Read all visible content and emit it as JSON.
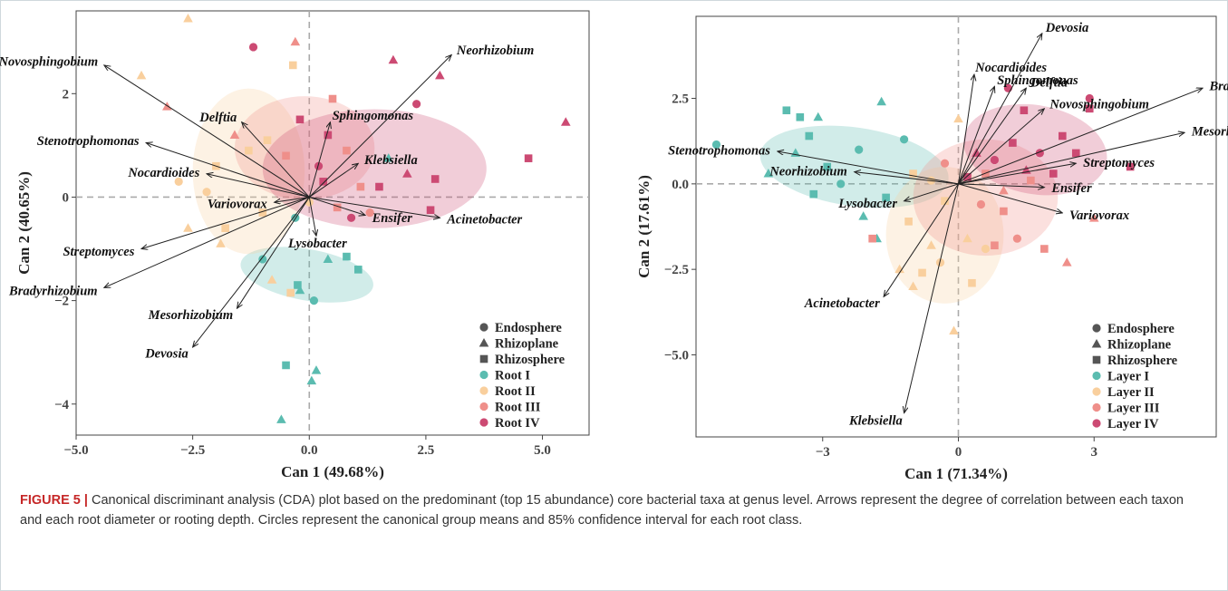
{
  "figure": {
    "caption_lead": "FIGURE 5 |",
    "caption_text": " Canonical discriminant analysis (CDA) plot based on the predominant (top 15 abundance) core bacterial taxa at genus level. Arrows represent the degree of correlation between each taxon and each root diameter or rooting depth. Circles represent the canonical group means and 85% confidence interval for each root class."
  },
  "colors": {
    "class1": "#5bbcb0",
    "class2": "#f9cf9d",
    "class3": "#ef8f8a",
    "class4": "#cc4a73"
  },
  "chart_data": [
    {
      "type": "scatter",
      "xlabel": "Can 1 (49.68%)",
      "ylabel": "Can 2 (40.65%)",
      "xlim": [
        -5.0,
        6.0
      ],
      "ylim": [
        -4.6,
        3.6
      ],
      "xticks": [
        -5.0,
        -2.5,
        0.0,
        2.5,
        5.0
      ],
      "xticklabels": [
        "−5.0",
        "−2.5",
        "0.0",
        "2.5",
        "5.0"
      ],
      "yticks": [
        -4,
        -2,
        0,
        2
      ],
      "yticklabels": [
        "−4",
        "−2",
        "0",
        "2"
      ],
      "legend": {
        "position": "bottom-right",
        "shapes": [
          "Endosphere",
          "Rhizoplane",
          "Rhizosphere"
        ],
        "groups": [
          "Root I",
          "Root II",
          "Root III",
          "Root IV"
        ]
      },
      "ellipses": [
        {
          "group": "Root I",
          "cx": -0.05,
          "cy": -1.5,
          "rx": 0.55,
          "ry": 1.3,
          "angle": 80
        },
        {
          "group": "Root II",
          "cx": -1.3,
          "cy": 0.5,
          "rx": 1.2,
          "ry": 1.6,
          "angle": 0
        },
        {
          "group": "Root III",
          "cx": -0.1,
          "cy": 0.95,
          "rx": 1.5,
          "ry": 1.0,
          "angle": 0
        },
        {
          "group": "Root IV",
          "cx": 1.4,
          "cy": 0.55,
          "rx": 2.4,
          "ry": 1.15,
          "angle": 0
        }
      ],
      "arrows": [
        {
          "label": "Novosphingobium",
          "x": -4.4,
          "y": 2.55
        },
        {
          "label": "Neorhizobium",
          "x": 3.05,
          "y": 2.75
        },
        {
          "label": "Delftia",
          "x": -1.45,
          "y": 1.45
        },
        {
          "label": "Sphingomonas",
          "x": 0.45,
          "y": 1.45
        },
        {
          "label": "Stenotrophomonas",
          "x": -3.5,
          "y": 1.05
        },
        {
          "label": "Klebsiella",
          "x": 1.05,
          "y": 0.65
        },
        {
          "label": "Nocardioides",
          "x": -2.2,
          "y": 0.45
        },
        {
          "label": "Variovorax",
          "x": -0.75,
          "y": -0.1
        },
        {
          "label": "Acinetobacter",
          "x": 2.8,
          "y": -0.4
        },
        {
          "label": "Ensifer",
          "x": 1.2,
          "y": -0.35
        },
        {
          "label": "Lysobacter",
          "x": 0.15,
          "y": -0.75
        },
        {
          "label": "Streptomyces",
          "x": -3.6,
          "y": -1.0
        },
        {
          "label": "Bradyrhizobium",
          "x": -4.4,
          "y": -1.75
        },
        {
          "label": "Mesorhizobium",
          "x": -1.55,
          "y": -2.15
        },
        {
          "label": "Devosia",
          "x": -2.5,
          "y": -2.9
        }
      ],
      "points": [
        {
          "x": -2.6,
          "y": 3.45,
          "shape": "Rhizoplane",
          "group": "Root II"
        },
        {
          "x": -3.6,
          "y": 2.35,
          "shape": "Rhizoplane",
          "group": "Root II"
        },
        {
          "x": -3.05,
          "y": 1.75,
          "shape": "Rhizoplane",
          "group": "Root III"
        },
        {
          "x": -1.2,
          "y": 2.9,
          "shape": "Endosphere",
          "group": "Root IV"
        },
        {
          "x": -0.3,
          "y": 3.0,
          "shape": "Rhizoplane",
          "group": "Root III"
        },
        {
          "x": -0.35,
          "y": 2.55,
          "shape": "Rhizosphere",
          "group": "Root II"
        },
        {
          "x": 1.8,
          "y": 2.65,
          "shape": "Rhizoplane",
          "group": "Root IV"
        },
        {
          "x": 2.8,
          "y": 2.35,
          "shape": "Rhizoplane",
          "group": "Root IV"
        },
        {
          "x": 5.5,
          "y": 1.45,
          "shape": "Rhizoplane",
          "group": "Root IV"
        },
        {
          "x": 4.7,
          "y": 0.75,
          "shape": "Rhizosphere",
          "group": "Root IV"
        },
        {
          "x": 2.3,
          "y": 1.8,
          "shape": "Endosphere",
          "group": "Root IV"
        },
        {
          "x": 2.7,
          "y": 0.35,
          "shape": "Rhizosphere",
          "group": "Root IV"
        },
        {
          "x": 2.6,
          "y": -0.25,
          "shape": "Rhizosphere",
          "group": "Root IV"
        },
        {
          "x": 2.1,
          "y": 0.45,
          "shape": "Rhizoplane",
          "group": "Root IV"
        },
        {
          "x": 1.7,
          "y": 0.75,
          "shape": "Rhizoplane",
          "group": "Root I"
        },
        {
          "x": 1.5,
          "y": 0.2,
          "shape": "Rhizosphere",
          "group": "Root IV"
        },
        {
          "x": 0.8,
          "y": 0.9,
          "shape": "Rhizosphere",
          "group": "Root III"
        },
        {
          "x": 0.4,
          "y": 1.2,
          "shape": "Rhizosphere",
          "group": "Root IV"
        },
        {
          "x": 0.2,
          "y": 0.6,
          "shape": "Endosphere",
          "group": "Root IV"
        },
        {
          "x": -0.5,
          "y": 0.8,
          "shape": "Rhizosphere",
          "group": "Root III"
        },
        {
          "x": -0.9,
          "y": 1.1,
          "shape": "Rhizosphere",
          "group": "Root II"
        },
        {
          "x": -1.3,
          "y": 0.9,
          "shape": "Rhizosphere",
          "group": "Root II"
        },
        {
          "x": -1.6,
          "y": 1.2,
          "shape": "Rhizoplane",
          "group": "Root III"
        },
        {
          "x": -2.0,
          "y": 0.6,
          "shape": "Rhizosphere",
          "group": "Root II"
        },
        {
          "x": -2.2,
          "y": 0.1,
          "shape": "Endosphere",
          "group": "Root II"
        },
        {
          "x": -2.6,
          "y": -0.6,
          "shape": "Rhizoplane",
          "group": "Root II"
        },
        {
          "x": -1.8,
          "y": -0.6,
          "shape": "Rhizosphere",
          "group": "Root II"
        },
        {
          "x": -1.0,
          "y": -0.3,
          "shape": "Rhizosphere",
          "group": "Root II"
        },
        {
          "x": -1.0,
          "y": -1.2,
          "shape": "Endosphere",
          "group": "Root I"
        },
        {
          "x": -0.8,
          "y": -1.6,
          "shape": "Rhizoplane",
          "group": "Root II"
        },
        {
          "x": -0.3,
          "y": -0.4,
          "shape": "Endosphere",
          "group": "Root I"
        },
        {
          "x": 0.0,
          "y": -0.1,
          "shape": "Endosphere",
          "group": "Root II"
        },
        {
          "x": 0.3,
          "y": 0.3,
          "shape": "Rhizosphere",
          "group": "Root IV"
        },
        {
          "x": 0.6,
          "y": -0.2,
          "shape": "Rhizosphere",
          "group": "Root III"
        },
        {
          "x": 0.9,
          "y": -0.4,
          "shape": "Endosphere",
          "group": "Root IV"
        },
        {
          "x": 1.1,
          "y": 0.2,
          "shape": "Rhizosphere",
          "group": "Root III"
        },
        {
          "x": 0.4,
          "y": -1.2,
          "shape": "Rhizoplane",
          "group": "Root I"
        },
        {
          "x": 1.05,
          "y": -1.4,
          "shape": "Rhizosphere",
          "group": "Root I"
        },
        {
          "x": 0.8,
          "y": -1.15,
          "shape": "Rhizosphere",
          "group": "Root I"
        },
        {
          "x": -0.25,
          "y": -1.7,
          "shape": "Rhizosphere",
          "group": "Root I"
        },
        {
          "x": -0.2,
          "y": -1.8,
          "shape": "Rhizoplane",
          "group": "Root I"
        },
        {
          "x": -0.4,
          "y": -1.85,
          "shape": "Rhizosphere",
          "group": "Root II"
        },
        {
          "x": 0.1,
          "y": -2.0,
          "shape": "Endosphere",
          "group": "Root I"
        },
        {
          "x": -0.5,
          "y": -3.25,
          "shape": "Rhizosphere",
          "group": "Root I"
        },
        {
          "x": 0.15,
          "y": -3.35,
          "shape": "Rhizoplane",
          "group": "Root I"
        },
        {
          "x": 0.05,
          "y": -3.55,
          "shape": "Rhizoplane",
          "group": "Root I"
        },
        {
          "x": -0.6,
          "y": -4.3,
          "shape": "Rhizoplane",
          "group": "Root I"
        },
        {
          "x": 1.3,
          "y": -0.3,
          "shape": "Endosphere",
          "group": "Root III"
        },
        {
          "x": 0.5,
          "y": 1.9,
          "shape": "Rhizosphere",
          "group": "Root III"
        },
        {
          "x": -0.2,
          "y": 1.5,
          "shape": "Rhizosphere",
          "group": "Root IV"
        },
        {
          "x": -1.9,
          "y": -0.9,
          "shape": "Rhizoplane",
          "group": "Root II"
        },
        {
          "x": -2.8,
          "y": 0.3,
          "shape": "Endosphere",
          "group": "Root II"
        }
      ]
    },
    {
      "type": "scatter",
      "xlabel": "Can 1 (71.34%)",
      "ylabel": "Can 2 (17.61%)",
      "xlim": [
        -5.8,
        5.7
      ],
      "ylim": [
        -7.4,
        4.9
      ],
      "xticks": [
        -3,
        0,
        3
      ],
      "xticklabels": [
        "−3",
        "0",
        "3"
      ],
      "yticks": [
        -5.0,
        -2.5,
        0.0,
        2.5
      ],
      "yticklabels": [
        "−5.0",
        "−2.5",
        "0.0",
        "2.5"
      ],
      "legend": {
        "position": "bottom-right",
        "shapes": [
          "Endosphere",
          "Rhizoplane",
          "Rhizosphere"
        ],
        "groups": [
          "Layer I",
          "Layer II",
          "Layer III",
          "Layer IV"
        ]
      },
      "ellipses": [
        {
          "group": "Layer I",
          "cx": -2.3,
          "cy": 0.5,
          "rx": 2.1,
          "ry": 1.15,
          "angle": -8
        },
        {
          "group": "Layer II",
          "cx": -0.3,
          "cy": -1.5,
          "rx": 1.3,
          "ry": 2.0,
          "angle": 0
        },
        {
          "group": "Layer III",
          "cx": 0.6,
          "cy": -0.4,
          "rx": 1.6,
          "ry": 1.7,
          "angle": 0
        },
        {
          "group": "Layer IV",
          "cx": 1.7,
          "cy": 1.0,
          "rx": 1.6,
          "ry": 1.3,
          "angle": -10
        }
      ],
      "arrows": [
        {
          "label": "Devosia",
          "x": 1.85,
          "y": 4.4
        },
        {
          "label": "Nocardioides",
          "x": 0.35,
          "y": 3.2
        },
        {
          "label": "Sphingomonas",
          "x": 0.8,
          "y": 2.85
        },
        {
          "label": "Delftia",
          "x": 1.5,
          "y": 2.8
        },
        {
          "label": "Bradyrhizobium",
          "x": 5.4,
          "y": 2.8
        },
        {
          "label": "Novosphingobium",
          "x": 1.9,
          "y": 2.2
        },
        {
          "label": "Mesorhizol",
          "x": 5.0,
          "y": 1.5
        },
        {
          "label": "Stenotrophomonas",
          "x": -4.0,
          "y": 0.95
        },
        {
          "label": "Neorhizobium",
          "x": -2.3,
          "y": 0.35
        },
        {
          "label": "Streptomyces",
          "x": 2.6,
          "y": 0.6
        },
        {
          "label": "Ensifer",
          "x": 1.9,
          "y": -0.1
        },
        {
          "label": "Lysobacter",
          "x": -1.2,
          "y": -0.5
        },
        {
          "label": "Variovorax",
          "x": 2.3,
          "y": -0.85
        },
        {
          "label": "Acinetobacter",
          "x": -1.65,
          "y": -3.3
        },
        {
          "label": "Klebsiella",
          "x": -1.2,
          "y": -6.7
        }
      ],
      "points": [
        {
          "x": -5.35,
          "y": 1.15,
          "shape": "Endosphere",
          "group": "Layer I"
        },
        {
          "x": -4.2,
          "y": 0.3,
          "shape": "Rhizoplane",
          "group": "Layer I"
        },
        {
          "x": -3.8,
          "y": 2.15,
          "shape": "Rhizosphere",
          "group": "Layer I"
        },
        {
          "x": -3.5,
          "y": 1.95,
          "shape": "Rhizosphere",
          "group": "Layer I"
        },
        {
          "x": -3.1,
          "y": 1.95,
          "shape": "Rhizoplane",
          "group": "Layer I"
        },
        {
          "x": -3.3,
          "y": 1.4,
          "shape": "Rhizosphere",
          "group": "Layer I"
        },
        {
          "x": -3.6,
          "y": 0.9,
          "shape": "Rhizoplane",
          "group": "Layer I"
        },
        {
          "x": -2.9,
          "y": 0.5,
          "shape": "Rhizosphere",
          "group": "Layer I"
        },
        {
          "x": -2.6,
          "y": 0.0,
          "shape": "Endosphere",
          "group": "Layer I"
        },
        {
          "x": -3.2,
          "y": -0.3,
          "shape": "Rhizosphere",
          "group": "Layer I"
        },
        {
          "x": -2.2,
          "y": 1.0,
          "shape": "Endosphere",
          "group": "Layer I"
        },
        {
          "x": -1.7,
          "y": 2.4,
          "shape": "Rhizoplane",
          "group": "Layer I"
        },
        {
          "x": -1.2,
          "y": 1.3,
          "shape": "Endosphere",
          "group": "Layer I"
        },
        {
          "x": -1.6,
          "y": -0.4,
          "shape": "Rhizosphere",
          "group": "Layer I"
        },
        {
          "x": -2.1,
          "y": -0.95,
          "shape": "Rhizoplane",
          "group": "Layer I"
        },
        {
          "x": -1.8,
          "y": -1.6,
          "shape": "Rhizoplane",
          "group": "Layer I"
        },
        {
          "x": -1.0,
          "y": 0.3,
          "shape": "Rhizosphere",
          "group": "Layer II"
        },
        {
          "x": -0.6,
          "y": 0.1,
          "shape": "Endosphere",
          "group": "Layer II"
        },
        {
          "x": -0.3,
          "y": -0.5,
          "shape": "Rhizosphere",
          "group": "Layer II"
        },
        {
          "x": -1.1,
          "y": -1.1,
          "shape": "Rhizosphere",
          "group": "Layer II"
        },
        {
          "x": -0.6,
          "y": -1.8,
          "shape": "Rhizoplane",
          "group": "Layer II"
        },
        {
          "x": -1.3,
          "y": -2.5,
          "shape": "Rhizoplane",
          "group": "Layer II"
        },
        {
          "x": -0.8,
          "y": -2.6,
          "shape": "Rhizosphere",
          "group": "Layer II"
        },
        {
          "x": -1.0,
          "y": -3.0,
          "shape": "Rhizoplane",
          "group": "Layer II"
        },
        {
          "x": -0.4,
          "y": -2.3,
          "shape": "Endosphere",
          "group": "Layer II"
        },
        {
          "x": 0.3,
          "y": -2.9,
          "shape": "Rhizosphere",
          "group": "Layer II"
        },
        {
          "x": 0.2,
          "y": -1.6,
          "shape": "Rhizoplane",
          "group": "Layer II"
        },
        {
          "x": 0.6,
          "y": -1.9,
          "shape": "Endosphere",
          "group": "Layer II"
        },
        {
          "x": -0.1,
          "y": -4.3,
          "shape": "Rhizoplane",
          "group": "Layer II"
        },
        {
          "x": 0.0,
          "y": 1.9,
          "shape": "Rhizoplane",
          "group": "Layer II"
        },
        {
          "x": -1.9,
          "y": -1.6,
          "shape": "Rhizosphere",
          "group": "Layer III"
        },
        {
          "x": 0.8,
          "y": -1.8,
          "shape": "Rhizosphere",
          "group": "Layer III"
        },
        {
          "x": 1.3,
          "y": -1.6,
          "shape": "Endosphere",
          "group": "Layer III"
        },
        {
          "x": 1.9,
          "y": -1.9,
          "shape": "Rhizosphere",
          "group": "Layer III"
        },
        {
          "x": 2.4,
          "y": -2.3,
          "shape": "Rhizoplane",
          "group": "Layer III"
        },
        {
          "x": 3.0,
          "y": -1.0,
          "shape": "Rhizoplane",
          "group": "Layer III"
        },
        {
          "x": 1.0,
          "y": -0.8,
          "shape": "Rhizosphere",
          "group": "Layer III"
        },
        {
          "x": 0.5,
          "y": -0.6,
          "shape": "Endosphere",
          "group": "Layer III"
        },
        {
          "x": 0.6,
          "y": 0.3,
          "shape": "Rhizosphere",
          "group": "Layer III"
        },
        {
          "x": 1.6,
          "y": 0.1,
          "shape": "Rhizosphere",
          "group": "Layer III"
        },
        {
          "x": 1.1,
          "y": 2.8,
          "shape": "Endosphere",
          "group": "Layer IV"
        },
        {
          "x": 1.45,
          "y": 2.15,
          "shape": "Rhizosphere",
          "group": "Layer IV"
        },
        {
          "x": 2.9,
          "y": 2.5,
          "shape": "Endosphere",
          "group": "Layer IV"
        },
        {
          "x": 2.9,
          "y": 2.2,
          "shape": "Rhizosphere",
          "group": "Layer IV"
        },
        {
          "x": 2.3,
          "y": 1.4,
          "shape": "Rhizosphere",
          "group": "Layer IV"
        },
        {
          "x": 2.6,
          "y": 0.9,
          "shape": "Rhizosphere",
          "group": "Layer IV"
        },
        {
          "x": 1.8,
          "y": 0.9,
          "shape": "Endosphere",
          "group": "Layer IV"
        },
        {
          "x": 1.2,
          "y": 1.2,
          "shape": "Rhizosphere",
          "group": "Layer IV"
        },
        {
          "x": 0.8,
          "y": 0.7,
          "shape": "Endosphere",
          "group": "Layer IV"
        },
        {
          "x": 1.5,
          "y": 0.4,
          "shape": "Rhizoplane",
          "group": "Layer IV"
        },
        {
          "x": 2.1,
          "y": 0.3,
          "shape": "Rhizosphere",
          "group": "Layer IV"
        },
        {
          "x": 3.8,
          "y": 0.5,
          "shape": "Rhizosphere",
          "group": "Layer IV"
        },
        {
          "x": 0.4,
          "y": 0.9,
          "shape": "Rhizoplane",
          "group": "Layer IV"
        },
        {
          "x": 0.2,
          "y": 0.2,
          "shape": "Rhizosphere",
          "group": "Layer IV"
        },
        {
          "x": -0.3,
          "y": 0.6,
          "shape": "Endosphere",
          "group": "Layer III"
        },
        {
          "x": 1.0,
          "y": -0.2,
          "shape": "Rhizoplane",
          "group": "Layer III"
        }
      ]
    }
  ]
}
